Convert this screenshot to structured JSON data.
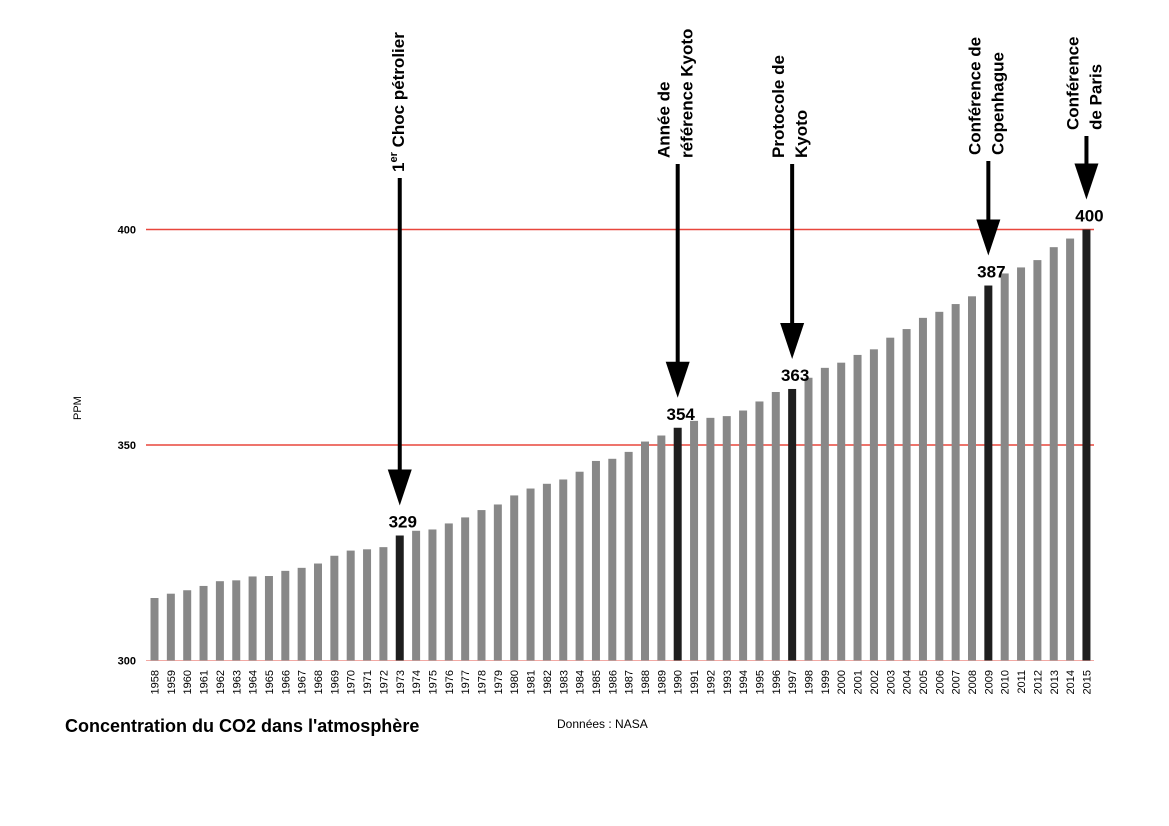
{
  "chart_data": {
    "type": "bar",
    "title": "Concentration du CO2 dans l'atmosphère",
    "source": "Données : NASA",
    "ylabel": "PPM",
    "xlabel": "",
    "ylim": [
      300,
      400
    ],
    "yticks": [
      300,
      350,
      400
    ],
    "grid_lines": [
      350,
      400
    ],
    "colors": {
      "bar": "#888888",
      "highlight": "#1e1e1e",
      "gridline": "#e8463c",
      "arrow": "#000000"
    },
    "categories": [
      "1958",
      "1959",
      "1960",
      "1961",
      "1962",
      "1963",
      "1964",
      "1965",
      "1966",
      "1967",
      "1968",
      "1969",
      "1970",
      "1971",
      "1972",
      "1973",
      "1974",
      "1975",
      "1976",
      "1977",
      "1978",
      "1979",
      "1980",
      "1981",
      "1982",
      "1983",
      "1984",
      "1985",
      "1986",
      "1987",
      "1988",
      "1989",
      "1990",
      "1991",
      "1992",
      "1993",
      "1994",
      "1995",
      "1996",
      "1997",
      "1998",
      "1999",
      "2000",
      "2001",
      "2002",
      "2003",
      "2004",
      "2005",
      "2006",
      "2007",
      "2008",
      "2009",
      "2010",
      "2011",
      "2012",
      "2013",
      "2014",
      "2015"
    ],
    "values": [
      314.5,
      315.5,
      316.3,
      317.3,
      318.4,
      318.6,
      319.5,
      319.6,
      320.8,
      321.5,
      322.5,
      324.3,
      325.5,
      325.8,
      326.3,
      329,
      330.1,
      330.4,
      331.8,
      333.2,
      334.9,
      336.2,
      338.3,
      339.9,
      341.0,
      342.0,
      343.8,
      346.3,
      346.8,
      348.4,
      350.8,
      352.2,
      354,
      355.6,
      356.3,
      356.7,
      358.0,
      360.1,
      362.3,
      363,
      365.6,
      367.9,
      369.1,
      370.9,
      372.2,
      374.9,
      376.9,
      379.5,
      380.9,
      382.7,
      384.5,
      387,
      389.8,
      391.2,
      392.9,
      395.9,
      397.9,
      400
    ],
    "highlighted": [
      "1973",
      "1990",
      "1997",
      "2009",
      "2015"
    ],
    "data_labels": [
      {
        "category": "1973",
        "text": "329"
      },
      {
        "category": "1990",
        "text": "354"
      },
      {
        "category": "1997",
        "text": "363"
      },
      {
        "category": "2009",
        "text": "387"
      },
      {
        "category": "2015",
        "text": "400"
      }
    ],
    "annotations": [
      {
        "category": "1973",
        "lines": [
          "1er Choc pétrolier"
        ],
        "superscript": true
      },
      {
        "category": "1990",
        "lines": [
          "Année de",
          "référence Kyoto"
        ]
      },
      {
        "category": "1997",
        "lines": [
          "Protocole de",
          "Kyoto"
        ]
      },
      {
        "category": "2009",
        "lines": [
          "Conférence de",
          "Copenhague"
        ]
      },
      {
        "category": "2015",
        "lines": [
          "Conférence",
          "de Paris"
        ]
      }
    ]
  }
}
